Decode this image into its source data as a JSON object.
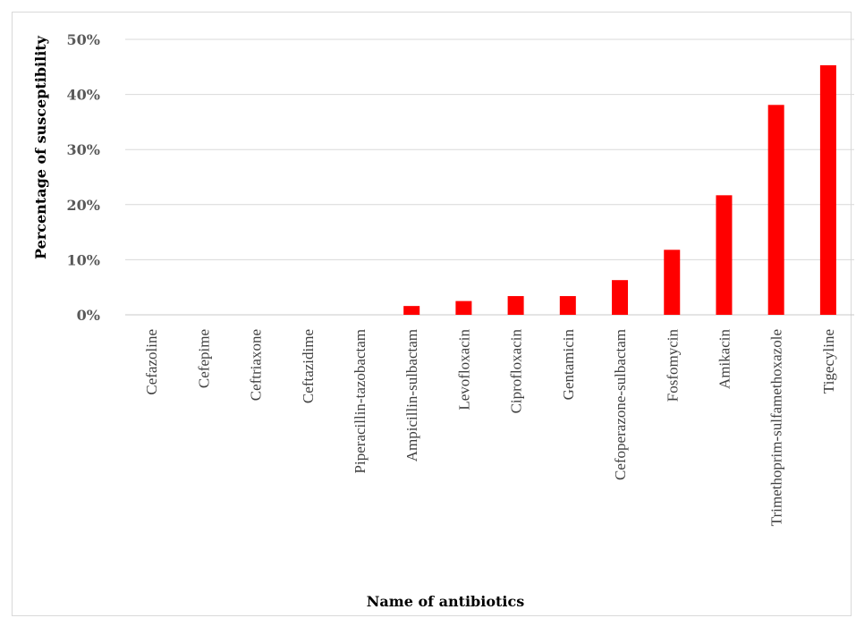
{
  "chart_data": {
    "type": "bar",
    "title": "",
    "xlabel": "Name of antibiotics",
    "ylabel": "Percentage of susceptibility",
    "ylim": [
      0,
      50
    ],
    "y_ticks": [
      "0%",
      "10%",
      "20%",
      "30%",
      "40%",
      "50%"
    ],
    "grid": true,
    "legend": "none",
    "bar_color": "#ff0000",
    "categories": [
      "Cefazoline",
      "Cefepime",
      "Ceftriaxone",
      "Ceftazidime",
      "Piperacillin-tazobactam",
      "Ampicillin-sulbactam",
      "Levofloxacin",
      "Ciprofloxacin",
      "Gentamicin",
      "Cefoperazone-sulbactam",
      "Fosfomycin",
      "Amikacin",
      "Trimethoprim-sulfamethoxazole",
      "Tigecyline"
    ],
    "values": [
      0,
      0,
      0,
      0,
      0,
      1.6,
      2.5,
      3.4,
      3.4,
      6.3,
      11.8,
      21.7,
      38.1,
      45.3
    ]
  }
}
